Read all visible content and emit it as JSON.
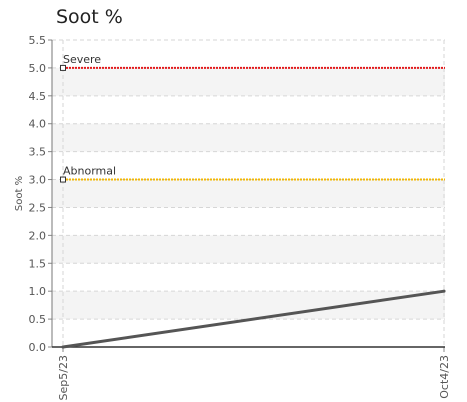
{
  "chart_data": {
    "type": "line",
    "title": "Soot %",
    "xlabel": "",
    "ylabel": "Soot %",
    "x": [
      "Sep5/23",
      "Oct4/23"
    ],
    "ylim": [
      0,
      5.5
    ],
    "ytick_step": 0.5,
    "y_ticks": [
      "0.0",
      "0.5",
      "1.0",
      "1.5",
      "2.0",
      "2.5",
      "3.0",
      "3.5",
      "4.0",
      "4.5",
      "5.0",
      "5.5"
    ],
    "grid": true,
    "series": [
      {
        "values": [
          0.0,
          1.0
        ],
        "color": "#555555"
      }
    ],
    "thresholds": [
      {
        "label": "Severe",
        "value": 5.0,
        "color": "#e31a1c"
      },
      {
        "label": "Abnormal",
        "value": 3.0,
        "color": "#f2b705"
      }
    ]
  }
}
